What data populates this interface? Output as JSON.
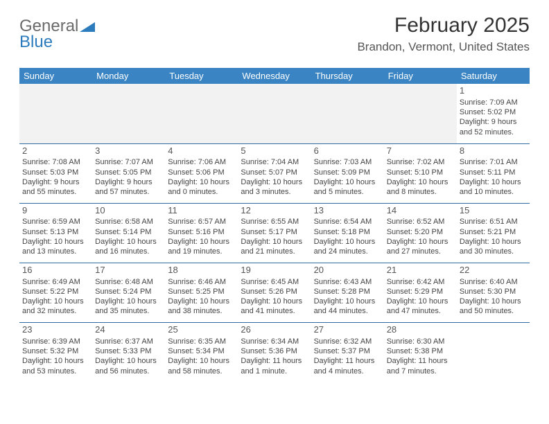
{
  "logo": {
    "general": "General",
    "blue": "Blue"
  },
  "title": "February 2025",
  "location": "Brandon, Vermont, United States",
  "weekday_header_bg": "#3a84c3",
  "weekday_header_fg": "#ffffff",
  "rule_color": "#2f6aa0",
  "weekdays": [
    "Sunday",
    "Monday",
    "Tuesday",
    "Wednesday",
    "Thursday",
    "Friday",
    "Saturday"
  ],
  "columns": 7,
  "cell_fontsize_pt": 8,
  "weeks": [
    [
      null,
      null,
      null,
      null,
      null,
      null,
      {
        "n": "1",
        "sr": "Sunrise: 7:09 AM",
        "ss": "Sunset: 5:02 PM",
        "d1": "Daylight: 9 hours",
        "d2": "and 52 minutes."
      }
    ],
    [
      {
        "n": "2",
        "sr": "Sunrise: 7:08 AM",
        "ss": "Sunset: 5:03 PM",
        "d1": "Daylight: 9 hours",
        "d2": "and 55 minutes."
      },
      {
        "n": "3",
        "sr": "Sunrise: 7:07 AM",
        "ss": "Sunset: 5:05 PM",
        "d1": "Daylight: 9 hours",
        "d2": "and 57 minutes."
      },
      {
        "n": "4",
        "sr": "Sunrise: 7:06 AM",
        "ss": "Sunset: 5:06 PM",
        "d1": "Daylight: 10 hours",
        "d2": "and 0 minutes."
      },
      {
        "n": "5",
        "sr": "Sunrise: 7:04 AM",
        "ss": "Sunset: 5:07 PM",
        "d1": "Daylight: 10 hours",
        "d2": "and 3 minutes."
      },
      {
        "n": "6",
        "sr": "Sunrise: 7:03 AM",
        "ss": "Sunset: 5:09 PM",
        "d1": "Daylight: 10 hours",
        "d2": "and 5 minutes."
      },
      {
        "n": "7",
        "sr": "Sunrise: 7:02 AM",
        "ss": "Sunset: 5:10 PM",
        "d1": "Daylight: 10 hours",
        "d2": "and 8 minutes."
      },
      {
        "n": "8",
        "sr": "Sunrise: 7:01 AM",
        "ss": "Sunset: 5:11 PM",
        "d1": "Daylight: 10 hours",
        "d2": "and 10 minutes."
      }
    ],
    [
      {
        "n": "9",
        "sr": "Sunrise: 6:59 AM",
        "ss": "Sunset: 5:13 PM",
        "d1": "Daylight: 10 hours",
        "d2": "and 13 minutes."
      },
      {
        "n": "10",
        "sr": "Sunrise: 6:58 AM",
        "ss": "Sunset: 5:14 PM",
        "d1": "Daylight: 10 hours",
        "d2": "and 16 minutes."
      },
      {
        "n": "11",
        "sr": "Sunrise: 6:57 AM",
        "ss": "Sunset: 5:16 PM",
        "d1": "Daylight: 10 hours",
        "d2": "and 19 minutes."
      },
      {
        "n": "12",
        "sr": "Sunrise: 6:55 AM",
        "ss": "Sunset: 5:17 PM",
        "d1": "Daylight: 10 hours",
        "d2": "and 21 minutes."
      },
      {
        "n": "13",
        "sr": "Sunrise: 6:54 AM",
        "ss": "Sunset: 5:18 PM",
        "d1": "Daylight: 10 hours",
        "d2": "and 24 minutes."
      },
      {
        "n": "14",
        "sr": "Sunrise: 6:52 AM",
        "ss": "Sunset: 5:20 PM",
        "d1": "Daylight: 10 hours",
        "d2": "and 27 minutes."
      },
      {
        "n": "15",
        "sr": "Sunrise: 6:51 AM",
        "ss": "Sunset: 5:21 PM",
        "d1": "Daylight: 10 hours",
        "d2": "and 30 minutes."
      }
    ],
    [
      {
        "n": "16",
        "sr": "Sunrise: 6:49 AM",
        "ss": "Sunset: 5:22 PM",
        "d1": "Daylight: 10 hours",
        "d2": "and 32 minutes."
      },
      {
        "n": "17",
        "sr": "Sunrise: 6:48 AM",
        "ss": "Sunset: 5:24 PM",
        "d1": "Daylight: 10 hours",
        "d2": "and 35 minutes."
      },
      {
        "n": "18",
        "sr": "Sunrise: 6:46 AM",
        "ss": "Sunset: 5:25 PM",
        "d1": "Daylight: 10 hours",
        "d2": "and 38 minutes."
      },
      {
        "n": "19",
        "sr": "Sunrise: 6:45 AM",
        "ss": "Sunset: 5:26 PM",
        "d1": "Daylight: 10 hours",
        "d2": "and 41 minutes."
      },
      {
        "n": "20",
        "sr": "Sunrise: 6:43 AM",
        "ss": "Sunset: 5:28 PM",
        "d1": "Daylight: 10 hours",
        "d2": "and 44 minutes."
      },
      {
        "n": "21",
        "sr": "Sunrise: 6:42 AM",
        "ss": "Sunset: 5:29 PM",
        "d1": "Daylight: 10 hours",
        "d2": "and 47 minutes."
      },
      {
        "n": "22",
        "sr": "Sunrise: 6:40 AM",
        "ss": "Sunset: 5:30 PM",
        "d1": "Daylight: 10 hours",
        "d2": "and 50 minutes."
      }
    ],
    [
      {
        "n": "23",
        "sr": "Sunrise: 6:39 AM",
        "ss": "Sunset: 5:32 PM",
        "d1": "Daylight: 10 hours",
        "d2": "and 53 minutes."
      },
      {
        "n": "24",
        "sr": "Sunrise: 6:37 AM",
        "ss": "Sunset: 5:33 PM",
        "d1": "Daylight: 10 hours",
        "d2": "and 56 minutes."
      },
      {
        "n": "25",
        "sr": "Sunrise: 6:35 AM",
        "ss": "Sunset: 5:34 PM",
        "d1": "Daylight: 10 hours",
        "d2": "and 58 minutes."
      },
      {
        "n": "26",
        "sr": "Sunrise: 6:34 AM",
        "ss": "Sunset: 5:36 PM",
        "d1": "Daylight: 11 hours",
        "d2": "and 1 minute."
      },
      {
        "n": "27",
        "sr": "Sunrise: 6:32 AM",
        "ss": "Sunset: 5:37 PM",
        "d1": "Daylight: 11 hours",
        "d2": "and 4 minutes."
      },
      {
        "n": "28",
        "sr": "Sunrise: 6:30 AM",
        "ss": "Sunset: 5:38 PM",
        "d1": "Daylight: 11 hours",
        "d2": "and 7 minutes."
      },
      null
    ]
  ]
}
